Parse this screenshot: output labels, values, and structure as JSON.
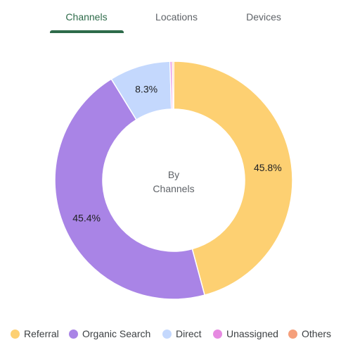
{
  "tabs": [
    {
      "label": "Channels",
      "active": true
    },
    {
      "label": "Locations",
      "active": false
    },
    {
      "label": "Devices",
      "active": false
    }
  ],
  "colors": {
    "active_tab": "#2e6b4a",
    "referral": "#fdd072",
    "organic_search": "#a984e6",
    "direct": "#c4d8fd",
    "unassigned": "#e68ae1",
    "others": "#f59f7b"
  },
  "center": {
    "line1": "By",
    "line2": "Channels"
  },
  "chart_data": {
    "type": "pie",
    "donut": true,
    "slices": [
      {
        "label": "Referral",
        "value": 45.8,
        "value_label": "45.8%",
        "color": "#fdd072"
      },
      {
        "label": "Organic Search",
        "value": 45.4,
        "value_label": "45.4%",
        "color": "#a984e6"
      },
      {
        "label": "Direct",
        "value": 8.3,
        "value_label": "8.3%",
        "color": "#c4d8fd"
      },
      {
        "label": "Unassigned",
        "value": 0.3,
        "value_label": "",
        "color": "#e68ae1"
      },
      {
        "label": "Others",
        "value": 0.2,
        "value_label": "",
        "color": "#f59f7b"
      }
    ],
    "legend_position": "bottom"
  }
}
